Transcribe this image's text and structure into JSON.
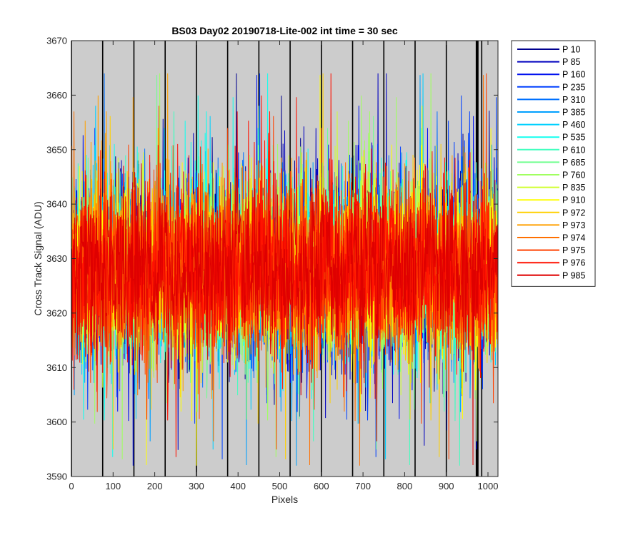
{
  "chart_data": {
    "type": "line",
    "title": "BS03 Day02 20190718-Lite-002 int time = 30 sec",
    "xlabel": "Pixels",
    "ylabel": "Cross Track Signal (ADU)",
    "xlim": [
      0,
      1024
    ],
    "ylim": [
      3590,
      3670
    ],
    "xticks": [
      0,
      100,
      200,
      300,
      400,
      500,
      600,
      700,
      800,
      900,
      1000
    ],
    "yticks": [
      3590,
      3600,
      3610,
      3620,
      3630,
      3640,
      3650,
      3660,
      3670
    ],
    "plot_background": "#cccccc",
    "grid": false,
    "legend_position": "outside-right",
    "vertical_lines_x": [
      0,
      75,
      150,
      225,
      300,
      375,
      450,
      525,
      600,
      675,
      750,
      825,
      900,
      972,
      973,
      974,
      975,
      976,
      985
    ],
    "noise_profile": {
      "mean": 3628,
      "typical_low": 3612,
      "typical_high": 3645,
      "min": 3592,
      "max": 3664,
      "pixels": 1024
    },
    "series": [
      {
        "name": "P 10",
        "color": "#00008f"
      },
      {
        "name": "P 85",
        "color": "#0000bf"
      },
      {
        "name": "P 160",
        "color": "#0010ef"
      },
      {
        "name": "P 235",
        "color": "#0040ff"
      },
      {
        "name": "P 310",
        "color": "#0070ff"
      },
      {
        "name": "P 385",
        "color": "#00a0ff"
      },
      {
        "name": "P 460",
        "color": "#00d0ff"
      },
      {
        "name": "P 535",
        "color": "#10ffef"
      },
      {
        "name": "P 610",
        "color": "#40ffbf"
      },
      {
        "name": "P 685",
        "color": "#70ff8f"
      },
      {
        "name": "P 760",
        "color": "#a0ff60"
      },
      {
        "name": "P 835",
        "color": "#d0ff30"
      },
      {
        "name": "P 910",
        "color": "#ffff00"
      },
      {
        "name": "P 972",
        "color": "#ffd000"
      },
      {
        "name": "P 973",
        "color": "#ffa000"
      },
      {
        "name": "P 974",
        "color": "#ff7000"
      },
      {
        "name": "P 975",
        "color": "#ff4000"
      },
      {
        "name": "P 976",
        "color": "#ff1000"
      },
      {
        "name": "P 985",
        "color": "#df0000"
      }
    ]
  }
}
